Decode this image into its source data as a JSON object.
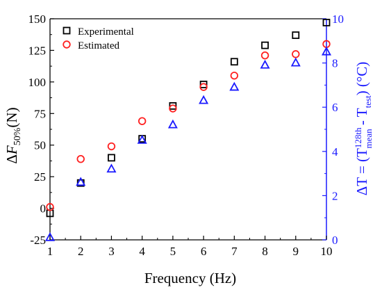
{
  "colors": {
    "left_axis": "#000000",
    "right_axis": "#1a1aff",
    "experimental": "#000000",
    "estimated": "#ff2020",
    "delta_t": "#1a1aff"
  },
  "chart_data": {
    "type": "scatter",
    "title": "",
    "xlabel": "Frequency (Hz)",
    "ylabel_left": {
      "prefix": "Δ",
      "symbol": "F",
      "sub": "50%",
      "suffix": "(N)"
    },
    "ylabel_right": {
      "t1": "ΔT = (T",
      "sup1": "128th",
      "sub1": "mean",
      "t2": " - T",
      "sub2": "test",
      "t3": ") (°C)"
    },
    "xlim": [
      1,
      10
    ],
    "ylim_left": [
      -25,
      150
    ],
    "ylim_right": [
      0,
      10
    ],
    "x_ticks": [
      "1",
      "2",
      "3",
      "4",
      "5",
      "6",
      "7",
      "8",
      "9",
      "10"
    ],
    "y_left_ticks": [
      "-25",
      "0",
      "25",
      "50",
      "75",
      "100",
      "125",
      "150"
    ],
    "y_right_ticks": [
      "0",
      "2",
      "4",
      "6",
      "8",
      "10"
    ],
    "legend_position": "top-left",
    "grid": false,
    "series": [
      {
        "name": "Experimental",
        "axis": "left",
        "marker": "square",
        "x": [
          1,
          2,
          3,
          4,
          5,
          6,
          7,
          8,
          9,
          10
        ],
        "y": [
          -4,
          20,
          40,
          55,
          81,
          98,
          116,
          129,
          137,
          147
        ]
      },
      {
        "name": "Estimated",
        "axis": "left",
        "marker": "circle",
        "x": [
          1,
          2,
          3,
          4,
          5,
          6,
          7,
          8,
          9,
          10
        ],
        "y": [
          1,
          39,
          49,
          69,
          79,
          96,
          105,
          121,
          122,
          130
        ]
      },
      {
        "name": "",
        "axis": "right",
        "marker": "triangle",
        "x": [
          1,
          2,
          3,
          4,
          5,
          6,
          7,
          8,
          9,
          10
        ],
        "y": [
          0.1,
          2.6,
          3.2,
          4.5,
          5.2,
          6.3,
          6.9,
          7.9,
          8.0,
          8.5
        ]
      }
    ]
  }
}
